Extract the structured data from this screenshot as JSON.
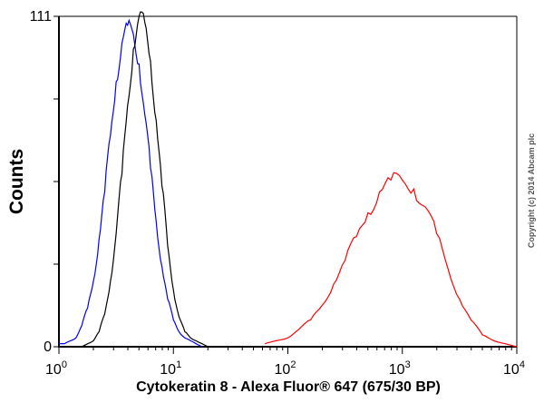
{
  "chart_data": {
    "type": "line",
    "title": "",
    "xlabel": "Cytokeratin 8 - Alexa Fluor® 647 (675/30 BP)",
    "ylabel": "Counts",
    "xscale": "log",
    "xlim": [
      1,
      10000
    ],
    "ylim": [
      0,
      111
    ],
    "x_tick_labels": [
      {
        "base": "10",
        "exp": "0"
      },
      {
        "base": "10",
        "exp": "1"
      },
      {
        "base": "10",
        "exp": "2"
      },
      {
        "base": "10",
        "exp": "3"
      },
      {
        "base": "10",
        "exp": "4"
      }
    ],
    "y_tick_labels": [
      "0",
      "111"
    ],
    "grid": false,
    "legend": "none",
    "annotation": "Copyright (c) 2014 Abcam plc",
    "series": [
      {
        "color": "#0000ff",
        "x": [
          1,
          1.12,
          1.26,
          1.41,
          1.58,
          1.78,
          2.0,
          2.24,
          2.51,
          2.82,
          3.16,
          3.55,
          3.98,
          4.47,
          5.01,
          5.62,
          6.31,
          7.08,
          7.94,
          8.91,
          10,
          11.2,
          12.6,
          14.1,
          15.8,
          17.8
        ],
        "y": [
          1,
          1,
          2,
          3,
          7,
          13,
          22,
          36,
          52,
          71,
          89,
          102,
          108,
          105,
          95,
          78,
          60,
          42,
          27,
          16,
          9,
          5,
          3,
          2,
          1,
          0
        ]
      },
      {
        "color": "#000000",
        "x": [
          1.41,
          1.58,
          1.78,
          2.0,
          2.24,
          2.51,
          2.82,
          3.16,
          3.55,
          3.98,
          4.47,
          5.01,
          5.62,
          6.31,
          7.08,
          7.94,
          8.91,
          10,
          11.2,
          12.6,
          14.1,
          15.8,
          17.8,
          20
        ],
        "y": [
          0,
          0,
          1,
          2,
          5,
          11,
          22,
          38,
          58,
          81,
          100,
          111,
          109,
          96,
          76,
          54,
          34,
          19,
          10,
          5,
          3,
          2,
          1,
          0
        ]
      },
      {
        "color": "#ff0000",
        "x": [
          63,
          79,
          100,
          126,
          158,
          200,
          251,
          316,
          398,
          501,
          631,
          794,
          1000,
          1259,
          1585,
          1995,
          2512,
          3162,
          3981,
          5012,
          6310,
          7943,
          10000
        ],
        "y": [
          1,
          2,
          3,
          6,
          9,
          14,
          21,
          29,
          37,
          45,
          52,
          56,
          56,
          53,
          47,
          38,
          26,
          16,
          9,
          4,
          2,
          1,
          0
        ]
      }
    ]
  }
}
